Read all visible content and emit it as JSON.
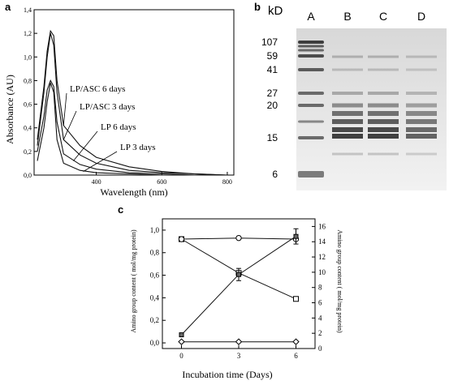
{
  "figure": {
    "panel_a": {
      "letter": "a",
      "ylabel": "Absorbance (AU)",
      "xlabel": "Wavelength  (nm)",
      "y_ticks": [
        "0,0",
        "0,2",
        "0,4",
        "0,6",
        "0,8",
        "1,0",
        "1,2",
        "1,4"
      ],
      "x_ticks": [
        "400",
        "600",
        "800"
      ],
      "curve_labels": [
        "LP/ASC  6 days",
        "LP/ASC  3 days",
        "LP  6 days",
        "LP  3 days"
      ]
    },
    "panel_b": {
      "letter": "b",
      "unit_label": "kD",
      "lanes": [
        "A",
        "B",
        "C",
        "D"
      ],
      "markers": [
        "107",
        "59",
        "41",
        "27",
        "20",
        "15",
        "6"
      ]
    },
    "panel_c": {
      "letter": "c",
      "xlabel": "Incubation time  (Days)",
      "ylabel_left": "Amino group content  ( mol/mg protein)",
      "ylabel_right": "Amino group content  ( mol/mg protein)",
      "left_ticks": [
        "0,0",
        "0,2",
        "0,4",
        "0,6",
        "0,8",
        "1,0"
      ],
      "right_ticks": [
        "0",
        "2",
        "4",
        "6",
        "8",
        "10",
        "12",
        "14",
        "16"
      ],
      "x_ticks": [
        "0",
        "3",
        "6"
      ]
    }
  },
  "chart_data": [
    {
      "type": "line",
      "title": "",
      "xlabel": "Wavelength  (nm)",
      "ylabel": "Absorbance (AU)",
      "xlim": [
        200,
        800
      ],
      "ylim": [
        0,
        1.4
      ],
      "series": [
        {
          "name": "LP/ASC  6 days",
          "x": [
            220,
            240,
            250,
            260,
            270,
            280,
            300,
            350,
            400,
            500,
            600,
            700,
            800
          ],
          "y": [
            0.3,
            0.75,
            1.05,
            1.22,
            1.18,
            0.8,
            0.42,
            0.25,
            0.15,
            0.07,
            0.03,
            0.01,
            0.0
          ]
        },
        {
          "name": "LP/ASC  3 days",
          "x": [
            220,
            240,
            250,
            260,
            270,
            280,
            300,
            350,
            400,
            500,
            600,
            700,
            800
          ],
          "y": [
            0.25,
            0.7,
            1.0,
            1.2,
            1.1,
            0.7,
            0.3,
            0.17,
            0.1,
            0.04,
            0.02,
            0.01,
            0.0
          ]
        },
        {
          "name": "LP  6 days",
          "x": [
            220,
            240,
            250,
            260,
            270,
            280,
            300,
            350,
            400,
            500,
            600,
            700,
            800
          ],
          "y": [
            0.2,
            0.5,
            0.72,
            0.8,
            0.75,
            0.45,
            0.18,
            0.09,
            0.05,
            0.02,
            0.01,
            0.0,
            0.0
          ]
        },
        {
          "name": "LP  3 days",
          "x": [
            220,
            240,
            250,
            260,
            270,
            280,
            300,
            350,
            400,
            500,
            600,
            700,
            800
          ],
          "y": [
            0.12,
            0.4,
            0.62,
            0.78,
            0.7,
            0.3,
            0.1,
            0.04,
            0.02,
            0.01,
            0.0,
            0.0,
            0.0
          ]
        }
      ]
    },
    {
      "type": "line",
      "title": "",
      "xlabel": "Incubation time  (Days)",
      "ylabel": "Amino group content  ( mol/mg protein)",
      "x": [
        0,
        3,
        6
      ],
      "ylim": [
        0,
        1.0
      ],
      "y2lim": [
        0,
        16
      ],
      "series": [
        {
          "marker": "square",
          "values": [
            0.92,
            0.62,
            0.39
          ]
        },
        {
          "marker": "circle",
          "values": [
            0.92,
            0.93,
            0.92
          ]
        },
        {
          "marker": "errorbar-square",
          "axis": "right",
          "values": [
            1.8,
            9.7,
            14.7
          ],
          "errors": [
            0,
            0.8,
            1.0
          ]
        },
        {
          "marker": "diamond",
          "values": [
            0.01,
            0.01,
            0.01
          ]
        }
      ]
    }
  ]
}
